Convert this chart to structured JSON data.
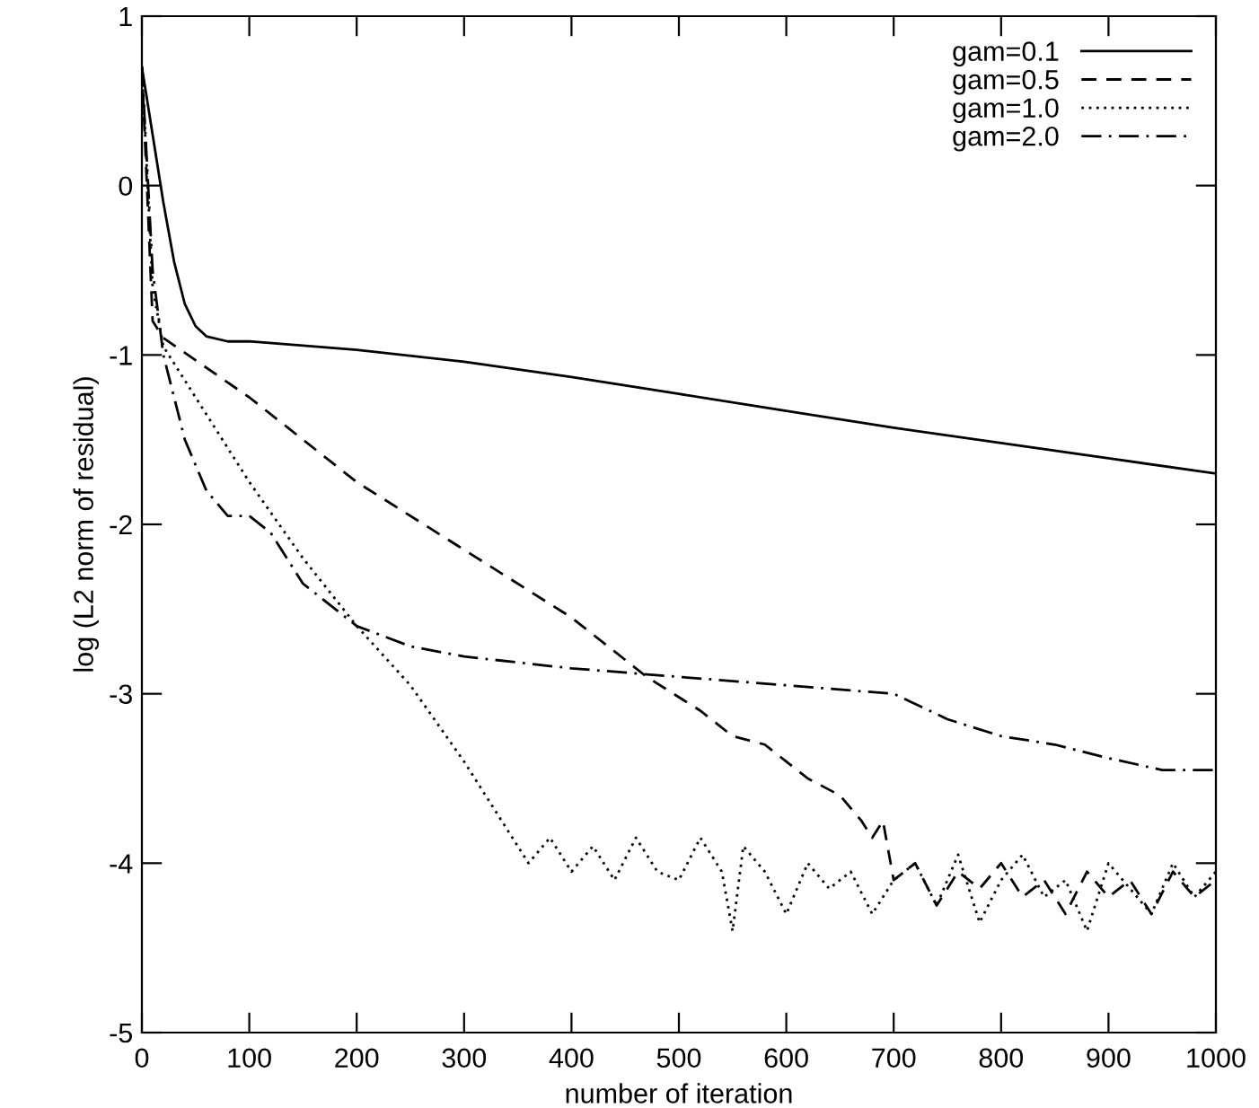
{
  "chart_data": {
    "type": "line",
    "xlabel": "number of iteration",
    "ylabel": "log (L2 norm of residual)",
    "xlim": [
      0,
      1000
    ],
    "ylim": [
      -5,
      1
    ],
    "xticks": [
      0,
      100,
      200,
      300,
      400,
      500,
      600,
      700,
      800,
      900,
      1000
    ],
    "yticks": [
      -5,
      -4,
      -3,
      -2,
      -1,
      0,
      1
    ],
    "grid": false,
    "legend": "top right",
    "marker": "none",
    "series": [
      {
        "name": "gam=0.1",
        "color": "#000000",
        "line_style": "solid",
        "x": [
          0,
          10,
          20,
          30,
          40,
          50,
          60,
          80,
          100,
          200,
          300,
          400,
          500,
          600,
          700,
          800,
          900,
          1000
        ],
        "values": [
          0.7,
          0.3,
          -0.1,
          -0.45,
          -0.7,
          -0.83,
          -0.89,
          -0.92,
          -0.92,
          -0.97,
          -1.04,
          -1.13,
          -1.23,
          -1.33,
          -1.43,
          -1.52,
          -1.61,
          -1.7
        ]
      },
      {
        "name": "gam=0.5",
        "color": "#000000",
        "line_style": "dashed",
        "x": [
          0,
          10,
          20,
          100,
          200,
          300,
          400,
          470,
          520,
          550,
          580,
          600,
          620,
          650,
          670,
          680,
          690,
          700,
          720,
          740,
          760,
          780,
          800,
          820,
          840,
          860,
          880,
          900,
          920,
          940,
          960,
          980,
          1000
        ],
        "values": [
          0.7,
          -0.8,
          -0.9,
          -1.25,
          -1.75,
          -2.15,
          -2.55,
          -2.9,
          -3.1,
          -3.25,
          -3.3,
          -3.4,
          -3.5,
          -3.6,
          -3.75,
          -3.85,
          -3.75,
          -4.1,
          -4.0,
          -4.25,
          -4.05,
          -4.15,
          -4.0,
          -4.2,
          -4.1,
          -4.3,
          -4.05,
          -4.2,
          -4.1,
          -4.3,
          -4.05,
          -4.2,
          -4.1
        ]
      },
      {
        "name": "gam=1.0",
        "color": "#000000",
        "line_style": "dotted",
        "x": [
          0,
          10,
          20,
          50,
          100,
          150,
          200,
          250,
          300,
          340,
          360,
          380,
          400,
          420,
          440,
          460,
          480,
          500,
          520,
          540,
          550,
          560,
          580,
          600,
          620,
          640,
          660,
          680,
          700,
          720,
          740,
          760,
          780,
          800,
          820,
          840,
          860,
          880,
          900,
          920,
          940,
          960,
          980,
          1000
        ],
        "values": [
          0.7,
          -0.6,
          -0.95,
          -1.25,
          -1.75,
          -2.2,
          -2.6,
          -2.95,
          -3.4,
          -3.8,
          -4.0,
          -3.85,
          -4.05,
          -3.9,
          -4.1,
          -3.85,
          -4.05,
          -4.1,
          -3.85,
          -4.05,
          -4.4,
          -3.9,
          -4.05,
          -4.3,
          -4.0,
          -4.15,
          -4.05,
          -4.3,
          -4.1,
          -4.0,
          -4.25,
          -3.95,
          -4.35,
          -4.1,
          -3.95,
          -4.2,
          -4.1,
          -4.4,
          -4.0,
          -4.15,
          -4.3,
          -4.0,
          -4.2,
          -4.05
        ]
      },
      {
        "name": "gam=2.0",
        "color": "#000000",
        "line_style": "dashdot",
        "x": [
          0,
          10,
          20,
          40,
          60,
          80,
          100,
          120,
          150,
          200,
          250,
          300,
          400,
          500,
          600,
          700,
          750,
          800,
          850,
          900,
          950,
          1000
        ],
        "values": [
          0.7,
          -0.5,
          -1.0,
          -1.5,
          -1.8,
          -1.95,
          -1.95,
          -2.05,
          -2.35,
          -2.6,
          -2.72,
          -2.78,
          -2.85,
          -2.9,
          -2.95,
          -3.0,
          -3.15,
          -3.25,
          -3.3,
          -3.38,
          -3.45,
          -3.45
        ]
      }
    ]
  }
}
